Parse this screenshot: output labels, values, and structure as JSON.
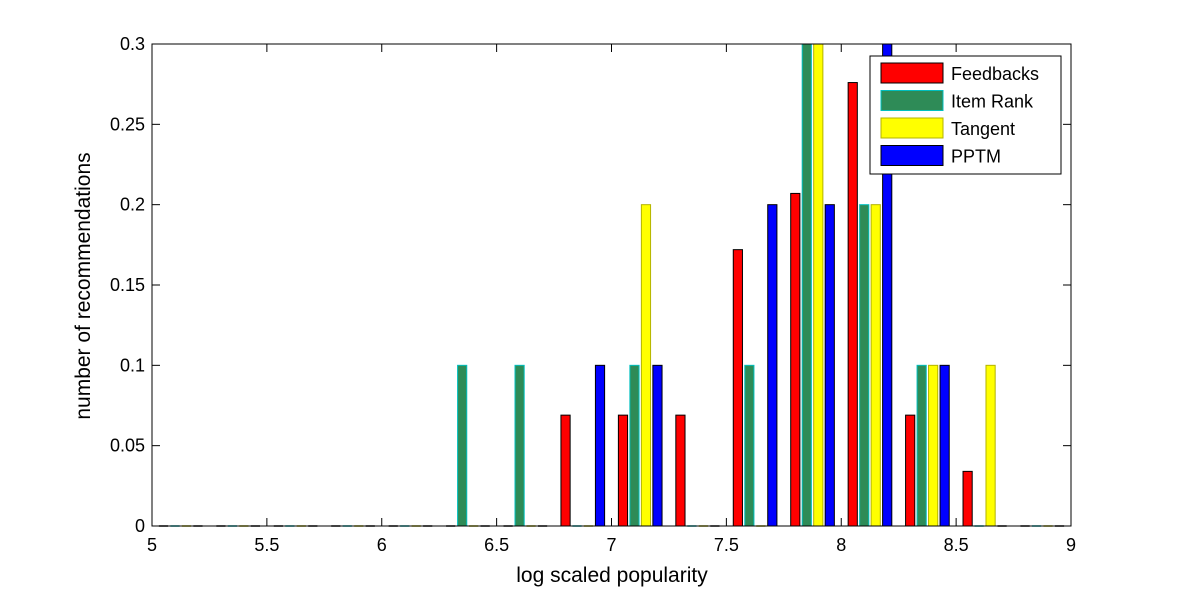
{
  "chart_data": {
    "type": "bar",
    "xlabel": "log scaled popularity",
    "ylabel": "number of recommendations",
    "xlim": [
      5,
      9
    ],
    "ylim": [
      0,
      0.3
    ],
    "xticks": [
      5,
      5.5,
      6,
      6.5,
      7,
      7.5,
      8,
      8.5,
      9
    ],
    "xtick_labels": [
      "5",
      "5.5",
      "6",
      "6.5",
      "7",
      "7.5",
      "8",
      "8.5",
      "9"
    ],
    "yticks": [
      0,
      0.05,
      0.1,
      0.15,
      0.2,
      0.25,
      0.3
    ],
    "ytick_labels": [
      "0",
      "0.05",
      "0.1",
      "0.15",
      "0.2",
      "0.25",
      "0.3"
    ],
    "legend_position": "top-right",
    "bin_centers": [
      5.125,
      5.375,
      5.625,
      5.875,
      6.125,
      6.375,
      6.625,
      6.875,
      7.125,
      7.375,
      7.625,
      7.875,
      8.125,
      8.375,
      8.625,
      8.875
    ],
    "series": [
      {
        "name": "Feedbacks",
        "color": "#ff0000",
        "edge": "#000000",
        "values": [
          0,
          0,
          0,
          0,
          0,
          0,
          0,
          0.069,
          0.069,
          0.069,
          0.172,
          0.207,
          0.276,
          0.069,
          0.034,
          0
        ]
      },
      {
        "name": "Item Rank",
        "color": "#2e8b57",
        "edge": "#00bfbf",
        "values": [
          0,
          0,
          0,
          0,
          0,
          0.1,
          0.1,
          0,
          0.1,
          0,
          0.1,
          0.3,
          0.2,
          0.1,
          0,
          0
        ]
      },
      {
        "name": "Tangent",
        "color": "#ffff00",
        "edge": "#b3b300",
        "values": [
          0,
          0,
          0,
          0,
          0,
          0,
          0,
          0,
          0.2,
          0,
          0,
          0.3,
          0.2,
          0.1,
          0.1,
          0
        ]
      },
      {
        "name": "PPTM",
        "color": "#0000ff",
        "edge": "#000000",
        "values": [
          0,
          0,
          0,
          0,
          0,
          0,
          0,
          0.1,
          0.1,
          0,
          0.2,
          0.2,
          0.3,
          0.1,
          0,
          0
        ]
      }
    ]
  }
}
